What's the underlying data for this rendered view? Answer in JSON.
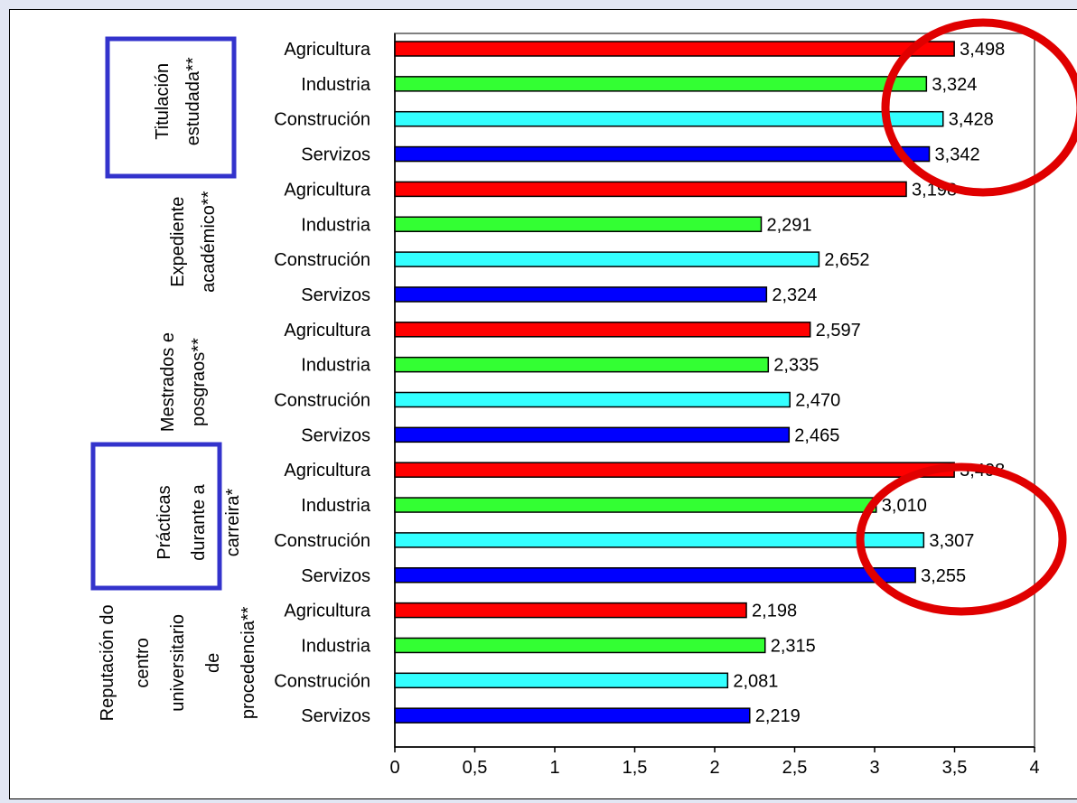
{
  "chart_data": {
    "type": "bar",
    "orientation": "horizontal",
    "xlim": [
      0,
      4
    ],
    "x_ticks": [
      "0",
      "0,5",
      "1",
      "1,5",
      "2",
      "2,5",
      "3",
      "3,5",
      "4"
    ],
    "x_tick_values": [
      0,
      0.5,
      1,
      1.5,
      2,
      2.5,
      3,
      3.5,
      4
    ],
    "grid": false,
    "sector_colors": {
      "Agricultura": "#ff0000",
      "Industria": "#33ff33",
      "Construción": "#33ffff",
      "Servizos": "#0000ff"
    },
    "highlight_color": "#e00000",
    "box_color": "#3333cc",
    "groups": [
      {
        "label_lines": [
          "Titulación",
          "estudada**"
        ],
        "boxed": true,
        "bars": [
          {
            "category": "Agricultura",
            "value": 3.498,
            "label": "3,498"
          },
          {
            "category": "Industria",
            "value": 3.324,
            "label": "3,324"
          },
          {
            "category": "Construción",
            "value": 3.428,
            "label": "3,428"
          },
          {
            "category": "Servizos",
            "value": 3.342,
            "label": "3,342"
          }
        ]
      },
      {
        "label_lines": [
          "Expediente",
          "académico**"
        ],
        "boxed": false,
        "bars": [
          {
            "category": "Agricultura",
            "value": 3.198,
            "label": "3,198"
          },
          {
            "category": "Industria",
            "value": 2.291,
            "label": "2,291"
          },
          {
            "category": "Construción",
            "value": 2.652,
            "label": "2,652"
          },
          {
            "category": "Servizos",
            "value": 2.324,
            "label": "2,324"
          }
        ]
      },
      {
        "label_lines": [
          "Mestrados e",
          "posgraos**"
        ],
        "boxed": false,
        "bars": [
          {
            "category": "Agricultura",
            "value": 2.597,
            "label": "2,597"
          },
          {
            "category": "Industria",
            "value": 2.335,
            "label": "2,335"
          },
          {
            "category": "Construción",
            "value": 2.47,
            "label": "2,470"
          },
          {
            "category": "Servizos",
            "value": 2.465,
            "label": "2,465"
          }
        ]
      },
      {
        "label_lines": [
          "Prácticas",
          "durante a",
          "carreira*"
        ],
        "boxed": true,
        "bars": [
          {
            "category": "Agricultura",
            "value": 3.498,
            "label": "3,498"
          },
          {
            "category": "Industria",
            "value": 3.01,
            "label": "3,010"
          },
          {
            "category": "Construción",
            "value": 3.307,
            "label": "3,307"
          },
          {
            "category": "Servizos",
            "value": 3.255,
            "label": "3,255"
          }
        ]
      },
      {
        "label_lines": [
          "Reputación do",
          "centro",
          "universitario",
          "de",
          "procedencia**"
        ],
        "boxed": false,
        "bars": [
          {
            "category": "Agricultura",
            "value": 2.198,
            "label": "2,198"
          },
          {
            "category": "Industria",
            "value": 2.315,
            "label": "2,315"
          },
          {
            "category": "Construción",
            "value": 2.081,
            "label": "2,081"
          },
          {
            "category": "Servizos",
            "value": 2.219,
            "label": "2,219"
          }
        ]
      }
    ],
    "highlights": [
      {
        "group_index": 0
      },
      {
        "group_index": 3
      }
    ]
  }
}
